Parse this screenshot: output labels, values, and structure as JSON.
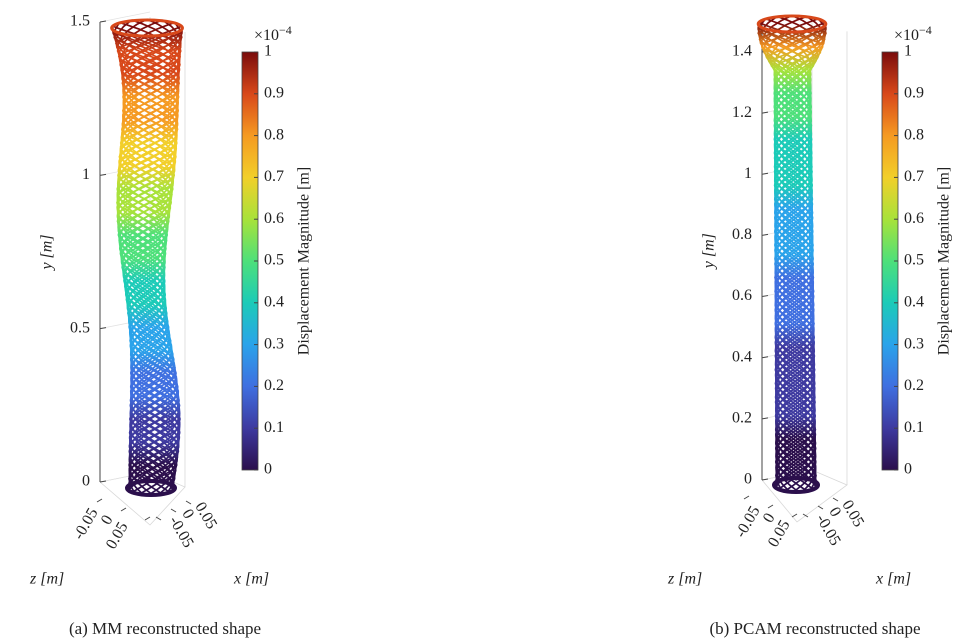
{
  "chart_data": [
    {
      "type": "surface3d",
      "caption": "(a) MM reconstructed shape",
      "ylabel": "y [m]",
      "xlabel": "x [m]",
      "zlabel": "z [m]",
      "ylim": [
        0,
        1.5
      ],
      "yticks": [
        0,
        0.5,
        1,
        1.5
      ],
      "xlim": [
        -0.05,
        0.05
      ],
      "xticks": [
        0.05,
        0,
        -0.05
      ],
      "zlim": [
        -0.05,
        0.05
      ],
      "zticks": [
        -0.05,
        0,
        0.05
      ],
      "colorbar": {
        "label": "Displacement Magnitude [m]",
        "scale_base": "×10",
        "scale_exponent": "−4",
        "clim": [
          0,
          1
        ],
        "ticks": [
          0,
          0.1,
          0.2,
          0.3,
          0.4,
          0.5,
          0.6,
          0.7,
          0.8,
          0.9,
          1
        ]
      },
      "colormap": [
        "#2b0f4c",
        "#3e3aa0",
        "#3f6fe0",
        "#2aa3ea",
        "#1ccbb8",
        "#4ee07a",
        "#a8e23a",
        "#f2cf2a",
        "#f59a22",
        "#d8481a",
        "#7a0c0c"
      ]
    },
    {
      "type": "surface3d",
      "caption": "(b) PCAM reconstructed shape",
      "ylabel": "y [m]",
      "xlabel": "x [m]",
      "zlabel": "z [m]",
      "ylim": [
        0,
        1.5
      ],
      "yticks": [
        0,
        0.2,
        0.4,
        0.6,
        0.8,
        1,
        1.2,
        1.4
      ],
      "xlim": [
        -0.05,
        0.05
      ],
      "xticks": [
        0.05,
        0,
        -0.05
      ],
      "zlim": [
        -0.05,
        0.05
      ],
      "zticks": [
        -0.05,
        0,
        0.05
      ],
      "colorbar": {
        "label": "Displacement Magnitude [m]",
        "scale_base": "×10",
        "scale_exponent": "−4",
        "clim": [
          0,
          1
        ],
        "ticks": [
          0,
          0.1,
          0.2,
          0.3,
          0.4,
          0.5,
          0.6,
          0.7,
          0.8,
          0.9,
          1
        ]
      },
      "colormap": [
        "#2b0f4c",
        "#3e3aa0",
        "#3f6fe0",
        "#2aa3ea",
        "#1ccbb8",
        "#4ee07a",
        "#a8e23a",
        "#f2cf2a",
        "#f59a22",
        "#d8481a",
        "#7a0c0c"
      ]
    }
  ]
}
